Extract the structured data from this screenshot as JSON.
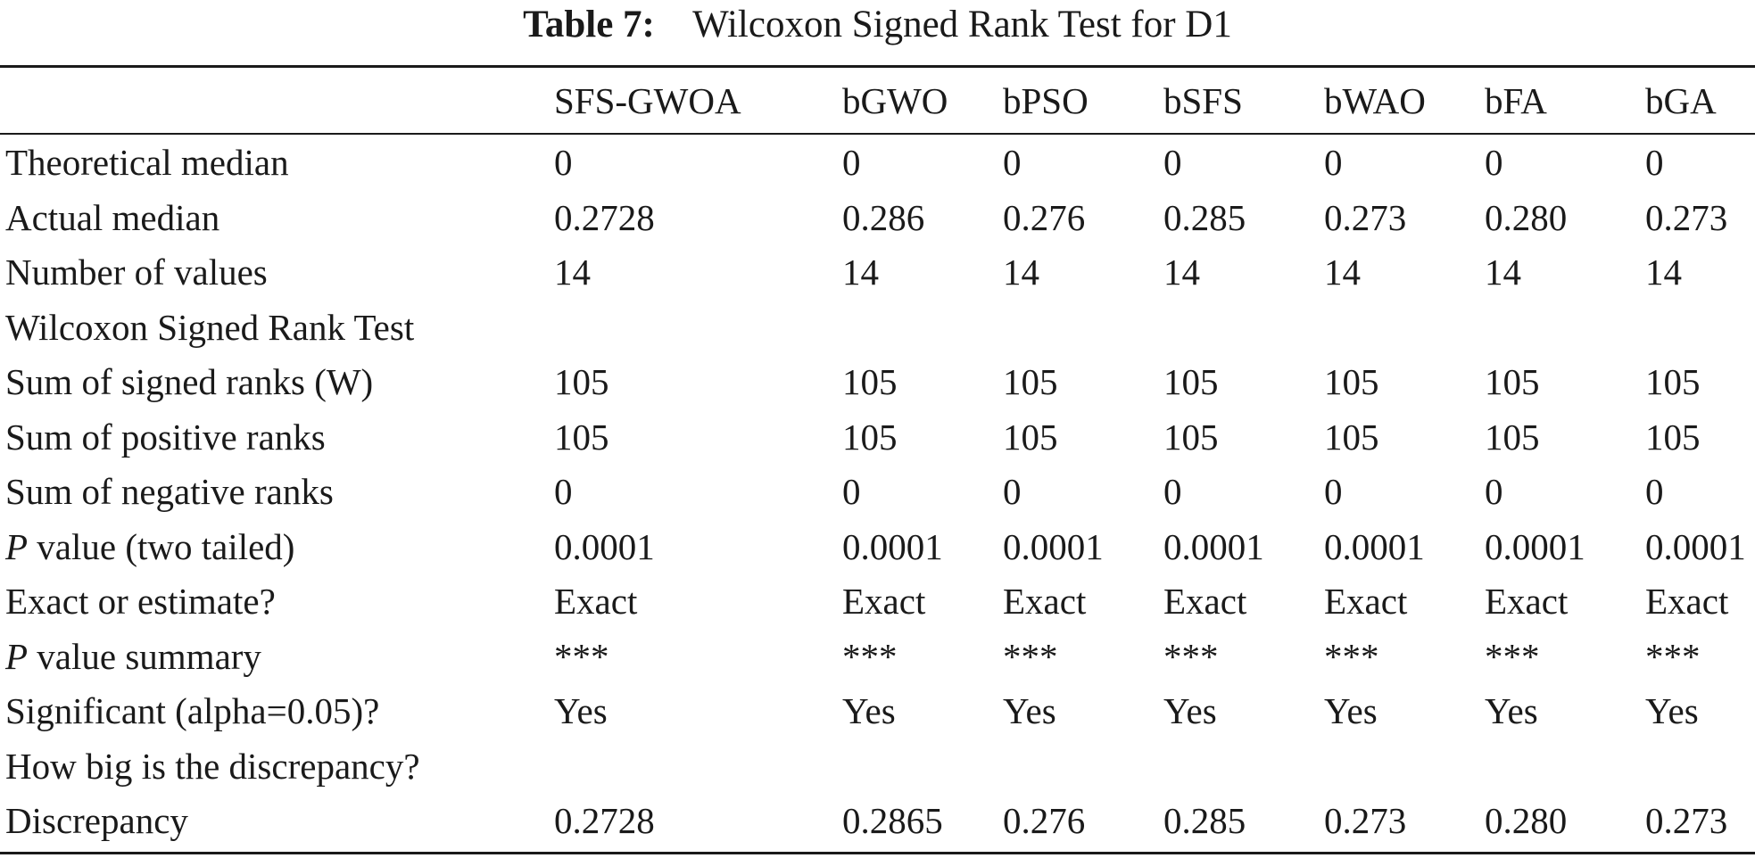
{
  "caption": {
    "label": "Table 7:",
    "text": "Wilcoxon Signed Rank Test for D1"
  },
  "table": {
    "columns": [
      "",
      "SFS-GWOA",
      "bGWO",
      "bPSO",
      "bSFS",
      "bWAO",
      "bFA",
      "bGA"
    ],
    "rows": [
      {
        "label_prefix": "",
        "label": "Theoretical median",
        "values": [
          "0",
          "0",
          "0",
          "0",
          "0",
          "0",
          "0"
        ]
      },
      {
        "label_prefix": "",
        "label": "Actual median",
        "values": [
          "0.2728",
          "0.286",
          "0.276",
          "0.285",
          "0.273",
          "0.280",
          "0.273"
        ]
      },
      {
        "label_prefix": "",
        "label": "Number of values",
        "values": [
          "14",
          "14",
          "14",
          "14",
          "14",
          "14",
          "14"
        ]
      },
      {
        "label_prefix": "",
        "label": "Wilcoxon Signed Rank Test",
        "values": []
      },
      {
        "label_prefix": "",
        "label": "Sum of signed ranks (W)",
        "values": [
          "105",
          "105",
          "105",
          "105",
          "105",
          "105",
          "105"
        ]
      },
      {
        "label_prefix": "",
        "label": "Sum of positive ranks",
        "values": [
          "105",
          "105",
          "105",
          "105",
          "105",
          "105",
          "105"
        ]
      },
      {
        "label_prefix": "",
        "label": "Sum of negative ranks",
        "values": [
          "0",
          "0",
          "0",
          "0",
          "0",
          "0",
          "0"
        ]
      },
      {
        "label_prefix": "P",
        "label": " value (two tailed)",
        "values": [
          "0.0001",
          "0.0001",
          "0.0001",
          "0.0001",
          "0.0001",
          "0.0001",
          "0.0001"
        ]
      },
      {
        "label_prefix": "",
        "label": "Exact or estimate?",
        "values": [
          "Exact",
          "Exact",
          "Exact",
          "Exact",
          "Exact",
          "Exact",
          "Exact"
        ]
      },
      {
        "label_prefix": "P",
        "label": " value summary",
        "values": [
          "***",
          "***",
          "***",
          "***",
          "***",
          "***",
          "***"
        ]
      },
      {
        "label_prefix": "",
        "label": "Significant (alpha=0.05)?",
        "values": [
          "Yes",
          "Yes",
          "Yes",
          "Yes",
          "Yes",
          "Yes",
          "Yes"
        ]
      },
      {
        "label_prefix": "",
        "label": "How big is the discrepancy?",
        "values": []
      },
      {
        "label_prefix": "",
        "label": "Discrepancy",
        "values": [
          "0.2728",
          "0.2865",
          "0.276",
          "0.285",
          "0.273",
          "0.280",
          "0.273"
        ]
      }
    ]
  }
}
